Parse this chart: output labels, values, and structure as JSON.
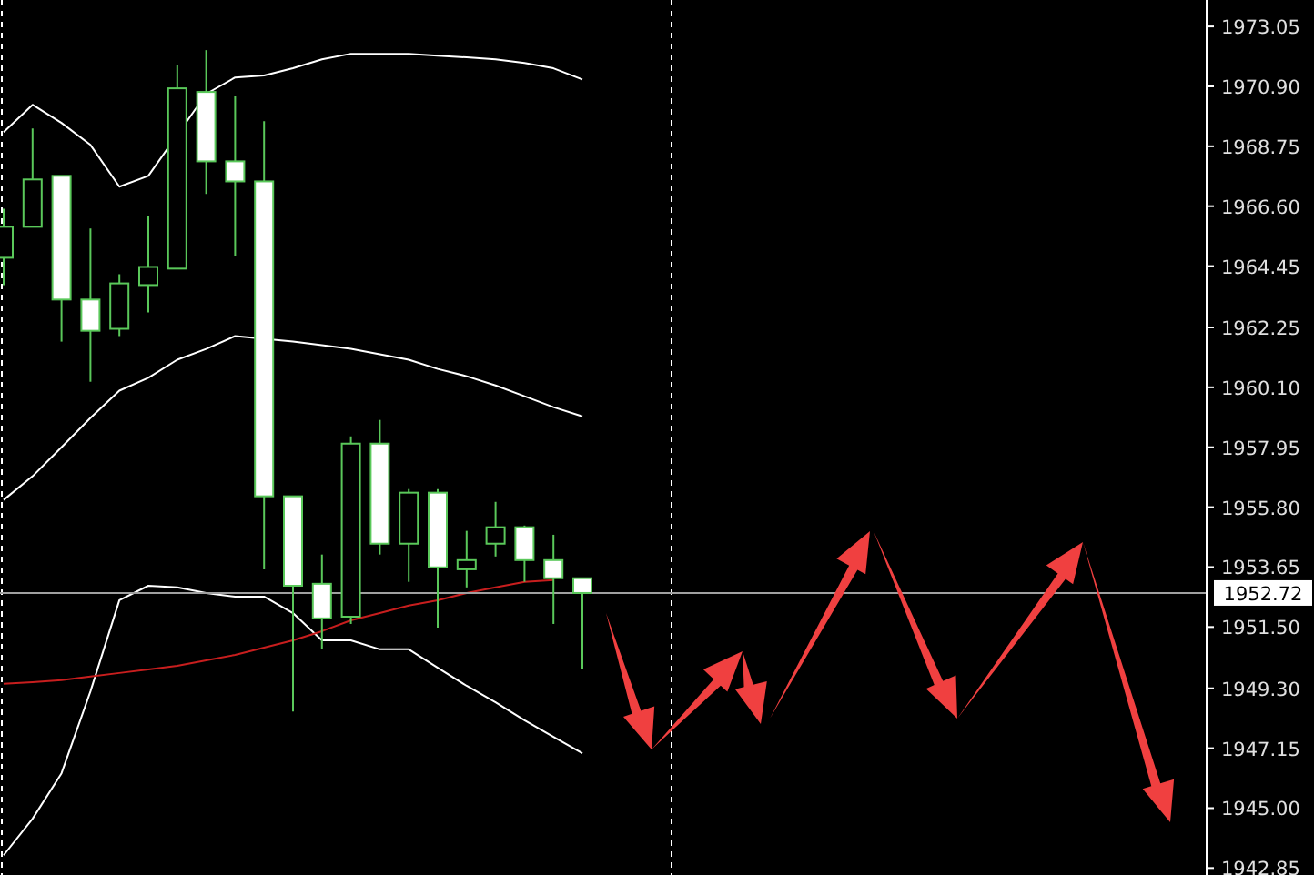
{
  "chart_data": {
    "type": "candlestick",
    "color": "#5ac85a",
    "categories": [
      null,
      null,
      null,
      null,
      null,
      null,
      null,
      null,
      null,
      null,
      null,
      null,
      null,
      null,
      null,
      null,
      null,
      null,
      null,
      null,
      null,
      null,
      null,
      null,
      null,
      null,
      null,
      null,
      null,
      null,
      null,
      null,
      null,
      null,
      null,
      null,
      null,
      null,
      null,
      null,
      null,
      null
    ],
    "ohlc": [
      [
        1964.75,
        1966.51,
        1963.77,
        1965.86
      ],
      [
        1965.86,
        1969.39,
        1965.86,
        1967.56
      ],
      [
        1967.69,
        1967.69,
        1961.74,
        1963.25
      ],
      [
        1963.25,
        1965.8,
        1960.3,
        1962.13
      ],
      [
        1962.2,
        1964.16,
        1961.94,
        1963.83
      ],
      [
        1963.77,
        1966.25,
        1962.79,
        1964.42
      ],
      [
        1964.36,
        1971.68,
        1964.36,
        1970.83
      ],
      [
        1970.7,
        1972.2,
        1967.04,
        1968.21
      ],
      [
        1968.21,
        1970.57,
        1964.81,
        1967.49
      ],
      [
        1967.49,
        1969.65,
        1953.57,
        1956.19
      ],
      [
        1956.19,
        1956.19,
        1948.47,
        1952.98
      ],
      [
        1953.05,
        1954.1,
        1950.7,
        1951.81
      ],
      [
        1951.87,
        1958.34,
        1951.61,
        1958.08
      ],
      [
        1958.08,
        1958.93,
        1954.1,
        1954.49
      ],
      [
        1954.49,
        1956.45,
        1953.12,
        1956.32
      ],
      [
        1956.32,
        1956.45,
        1951.48,
        1953.64
      ],
      [
        1953.57,
        1954.95,
        1952.92,
        1953.9
      ],
      [
        1954.49,
        1955.99,
        1954.03,
        1955.08
      ],
      [
        1955.08,
        1955.14,
        1953.12,
        1953.9
      ],
      [
        1953.9,
        1954.81,
        1951.61,
        1953.25
      ],
      [
        1953.25,
        1953.25,
        1949.98,
        1952.72
      ],
      null,
      null,
      null,
      null,
      null,
      null,
      null,
      null,
      null,
      null,
      null,
      null,
      null,
      null,
      null,
      null,
      null,
      null,
      null,
      null,
      null
    ],
    "series": [
      {
        "type": "line",
        "color": "#ffffff",
        "values": [
          1969.26,
          1970.24,
          1969.59,
          1968.8,
          1967.3,
          1967.69,
          null,
          1970.63,
          1971.22,
          1971.29,
          1971.55,
          1971.87,
          1972.07,
          1972.07,
          1972.07,
          1972.0,
          1971.94,
          1971.87,
          1971.74,
          1971.55,
          1971.15,
          null,
          null,
          null,
          null,
          null,
          null,
          null,
          null,
          null,
          null,
          null,
          null,
          null,
          null,
          null,
          null,
          null,
          null,
          null,
          null,
          null
        ]
      },
      {
        "type": "line",
        "color": "#ffffff",
        "values": [
          1956.06,
          1956.91,
          1957.95,
          1959.0,
          1959.98,
          1960.44,
          1961.09,
          1961.48,
          1961.94,
          null,
          1961.74,
          1961.61,
          1961.48,
          1961.29,
          1961.09,
          1960.76,
          1960.5,
          1960.17,
          1959.78,
          1959.39,
          1959.06,
          null,
          null,
          null,
          null,
          null,
          null,
          null,
          null,
          null,
          null,
          null,
          null,
          null,
          null,
          null,
          null,
          null,
          null,
          null,
          null,
          null
        ]
      },
      {
        "type": "line",
        "color": "#ffffff",
        "values": [
          1943.31,
          1944.62,
          1946.25,
          1949.19,
          1952.46,
          1952.98,
          1952.92,
          1952.72,
          1952.59,
          1952.59,
          1952.0,
          1951.02,
          1951.02,
          1950.7,
          1950.7,
          1950.04,
          1949.39,
          1948.8,
          1948.15,
          1947.56,
          1946.97,
          null,
          null,
          null,
          null,
          null,
          null,
          null,
          null,
          null,
          null,
          null,
          null,
          null,
          null,
          null,
          null,
          null,
          null,
          null,
          null,
          null
        ]
      },
      {
        "type": "line",
        "color": "#c81e1e",
        "values": [
          1949.46,
          1949.52,
          1949.59,
          1949.72,
          1949.85,
          1949.98,
          1950.11,
          1950.3,
          1950.5,
          1950.76,
          1951.02,
          1951.35,
          1951.74,
          1952.0,
          1952.27,
          1952.46,
          1952.72,
          1952.92,
          1953.12,
          1953.18,
          null,
          null,
          null,
          null,
          null,
          null,
          null,
          null,
          null,
          null,
          null,
          null,
          null,
          null,
          null,
          null,
          null,
          null,
          null,
          null,
          null,
          null
        ]
      }
    ],
    "ylim": [
      1942.6,
      1974.0
    ],
    "yticks": [
      1973.05,
      {
        "value": 1970.9,
        "label": "1970.90"
      },
      1968.75,
      {
        "value": 1966.6,
        "label": "1966.60"
      },
      1964.45,
      1962.25,
      {
        "value": 1960.1,
        "label": "1960.10"
      },
      1957.95,
      {
        "value": 1955.8,
        "label": "1955.80"
      },
      1953.65,
      {
        "value": 1951.5,
        "label": "1951.50"
      },
      {
        "value": 1949.3,
        "label": "1949.30"
      },
      1947.15,
      {
        "value": 1945,
        "label": "1945.00"
      },
      1942.85
    ],
    "tick_labels": "y",
    "ref_lines": [
      {
        "axis": "y",
        "value": 1952.72,
        "label": "1952.72",
        "color": "#a0a0a0",
        "line_style": "solid"
      }
    ]
  }
}
